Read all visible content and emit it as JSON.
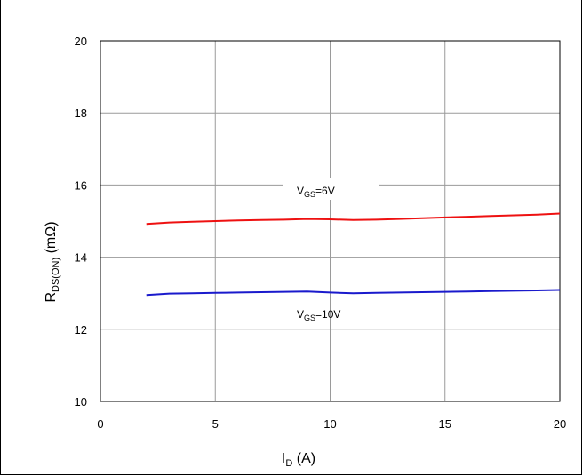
{
  "chart_data": {
    "type": "line",
    "x_range": [
      0,
      20
    ],
    "y_range": [
      10,
      20
    ],
    "x_ticks": [
      0,
      5,
      10,
      15,
      20
    ],
    "y_ticks": [
      10,
      12,
      14,
      16,
      18,
      20
    ],
    "grid": true,
    "xlabel": {
      "main": "I",
      "sub": "D",
      "rest": " (A)"
    },
    "ylabel": {
      "main": "R",
      "sub": "DS(ON)",
      "rest": " (mΩ)"
    },
    "series": [
      {
        "label": {
          "main": "V",
          "sub": "GS",
          "rest": "=6V"
        },
        "color": "#ee1111",
        "x": [
          2,
          3,
          4,
          5,
          6,
          7,
          8,
          9,
          10,
          11,
          12,
          13,
          14,
          15,
          16,
          17,
          18,
          19,
          20
        ],
        "y": [
          14.92,
          14.96,
          14.98,
          15.0,
          15.02,
          15.03,
          15.04,
          15.06,
          15.05,
          15.03,
          15.04,
          15.06,
          15.08,
          15.1,
          15.12,
          15.14,
          15.16,
          15.18,
          15.21
        ]
      },
      {
        "label": {
          "main": "V",
          "sub": "GS",
          "rest": "=10V"
        },
        "color": "#1a1acc",
        "x": [
          2,
          3,
          4,
          5,
          6,
          7,
          8,
          9,
          10,
          11,
          12,
          13,
          14,
          15,
          16,
          17,
          18,
          19,
          20
        ],
        "y": [
          12.95,
          12.99,
          13.0,
          13.01,
          13.02,
          13.03,
          13.04,
          13.05,
          13.02,
          13.0,
          13.01,
          13.02,
          13.03,
          13.04,
          13.05,
          13.06,
          13.07,
          13.08,
          13.09
        ]
      }
    ]
  }
}
